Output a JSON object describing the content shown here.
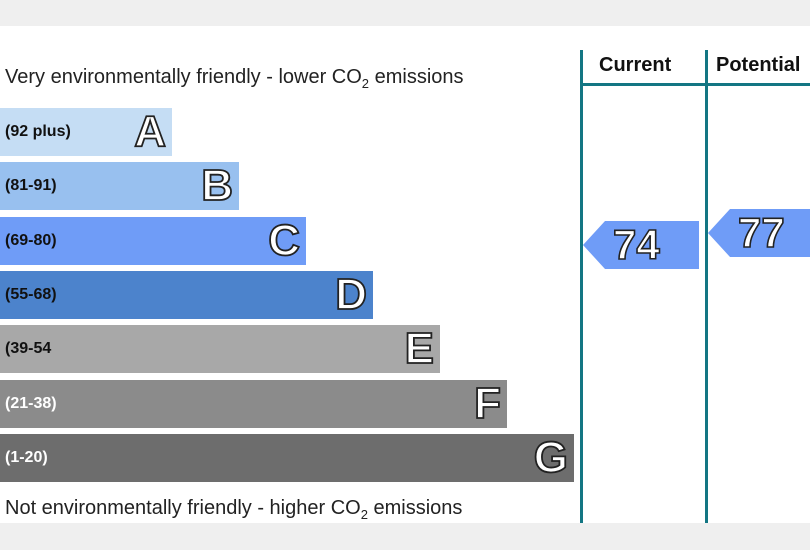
{
  "chart_data": {
    "type": "bar",
    "top_caption": {
      "before_sub": "Very environmentally friendly - lower CO",
      "sub": "2",
      "after_sub": " emissions"
    },
    "bottom_caption": {
      "before_sub": "Not environmentally friendly - higher CO",
      "sub": "2",
      "after_sub": " emissions"
    },
    "bands": [
      {
        "letter": "A",
        "range": "(92 plus)",
        "color": "#c5ddf4",
        "text_color": "#111111",
        "rank": 1
      },
      {
        "letter": "B",
        "range": "(81-91)",
        "color": "#98c0ef",
        "text_color": "#111111",
        "rank": 2
      },
      {
        "letter": "C",
        "range": "(69-80)",
        "color": "#6f9cf7",
        "text_color": "#111111",
        "rank": 3
      },
      {
        "letter": "D",
        "range": "(55-68)",
        "color": "#4c83cc",
        "text_color": "#111111",
        "rank": 4
      },
      {
        "letter": "E",
        "range": "(39-54",
        "color": "#a8a8a8",
        "text_color": "#111111",
        "rank": 5
      },
      {
        "letter": "F",
        "range": "(21-38)",
        "color": "#8b8b8b",
        "text_color": "#ffffff",
        "rank": 6
      },
      {
        "letter": "G",
        "range": "(1-20)",
        "color": "#6d6d6d",
        "text_color": "#ffffff",
        "rank": 7
      }
    ],
    "columns": {
      "current_label": "Current",
      "potential_label": "Potential"
    },
    "current": {
      "value": "74",
      "band": "C",
      "color": "#6f9cf7"
    },
    "potential": {
      "value": "77",
      "band": "C",
      "color": "#6f9cf7"
    }
  }
}
